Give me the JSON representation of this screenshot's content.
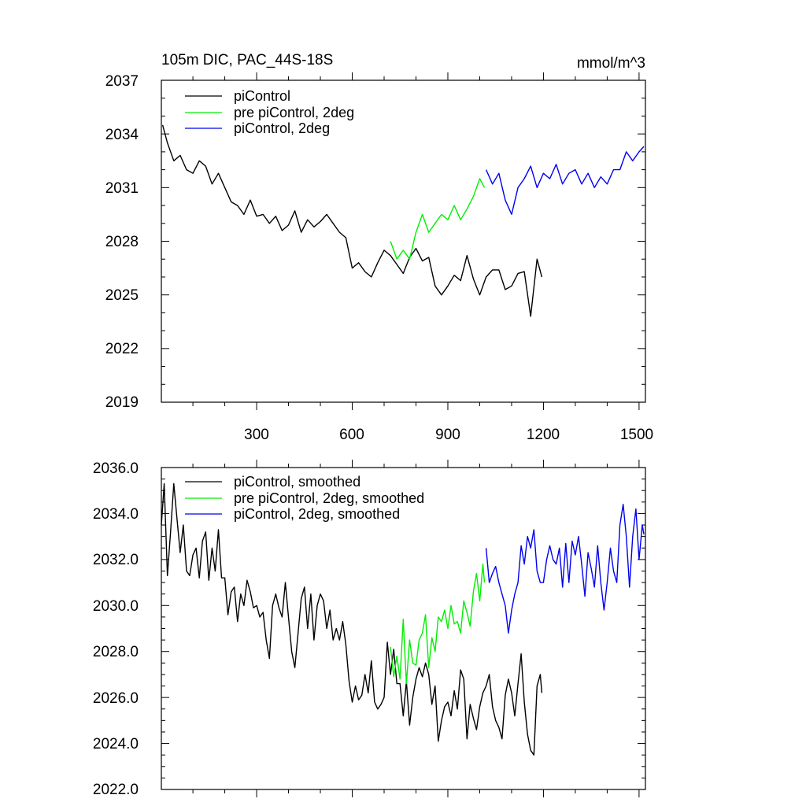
{
  "colors": {
    "piControl": "#000000",
    "pre_2deg": "#00ee00",
    "pi_2deg": "#0000ee",
    "axis": "#000000"
  },
  "chart_data": [
    {
      "type": "line",
      "title": "105m DIC, PAC_44S-18S",
      "units": "mmol/m^3",
      "xlabel": "",
      "ylabel": "",
      "xlim": [
        1,
        1520
      ],
      "ylim": [
        2019,
        2037
      ],
      "xticks": [
        "300",
        "600",
        "900",
        "1200",
        "1500"
      ],
      "yticks": [
        "2019",
        "2022",
        "2025",
        "2028",
        "2031",
        "2034",
        "2037"
      ],
      "legend_position": "top-left",
      "series": [
        {
          "name": "piControl",
          "color": "#000000",
          "x": [
            5,
            20,
            40,
            60,
            80,
            100,
            120,
            140,
            160,
            180,
            200,
            220,
            240,
            260,
            280,
            300,
            320,
            340,
            360,
            380,
            400,
            420,
            440,
            460,
            480,
            500,
            520,
            540,
            560,
            580,
            600,
            620,
            640,
            660,
            680,
            700,
            720,
            740,
            760,
            780,
            800,
            820,
            840,
            860,
            880,
            900,
            920,
            940,
            960,
            980,
            1000,
            1020,
            1040,
            1060,
            1080,
            1100,
            1120,
            1140,
            1160,
            1180,
            1195
          ],
          "y": [
            2034.5,
            2033.5,
            2032.5,
            2032.8,
            2032.0,
            2031.8,
            2032.5,
            2032.2,
            2031.2,
            2031.8,
            2031.0,
            2030.2,
            2030.0,
            2029.5,
            2030.3,
            2029.4,
            2029.5,
            2029.0,
            2029.4,
            2028.6,
            2028.9,
            2029.7,
            2028.5,
            2029.2,
            2028.8,
            2029.1,
            2029.5,
            2029.0,
            2028.5,
            2028.2,
            2026.5,
            2026.8,
            2026.3,
            2026.0,
            2026.8,
            2027.5,
            2027.2,
            2026.7,
            2026.2,
            2027.1,
            2027.6,
            2026.9,
            2027.1,
            2025.5,
            2025.0,
            2025.5,
            2026.1,
            2025.8,
            2027.2,
            2025.9,
            2025.0,
            2026.0,
            2026.4,
            2026.4,
            2025.3,
            2025.5,
            2026.2,
            2026.3,
            2023.8,
            2027.0,
            2026.0
          ]
        },
        {
          "name": "pre piControl, 2deg",
          "color": "#00ee00",
          "x": [
            720,
            740,
            760,
            780,
            800,
            820,
            840,
            860,
            880,
            900,
            920,
            940,
            960,
            980,
            1000,
            1015
          ],
          "y": [
            2028.0,
            2027.0,
            2027.5,
            2027.0,
            2028.5,
            2029.5,
            2028.5,
            2029.0,
            2029.5,
            2029.2,
            2030.0,
            2029.2,
            2029.8,
            2030.5,
            2031.5,
            2031.0
          ]
        },
        {
          "name": "piControl, 2deg",
          "color": "#0000ee",
          "x": [
            1020,
            1040,
            1060,
            1080,
            1100,
            1120,
            1140,
            1160,
            1180,
            1200,
            1220,
            1240,
            1260,
            1280,
            1300,
            1320,
            1340,
            1360,
            1380,
            1400,
            1420,
            1440,
            1460,
            1480,
            1500,
            1515
          ],
          "y": [
            2032.0,
            2031.2,
            2031.8,
            2030.3,
            2029.5,
            2031.0,
            2031.5,
            2032.2,
            2031.0,
            2031.8,
            2031.5,
            2032.3,
            2031.2,
            2031.8,
            2032.0,
            2031.2,
            2031.8,
            2031.0,
            2031.6,
            2031.2,
            2032.0,
            2032.0,
            2033.0,
            2032.5,
            2033.0,
            2033.3
          ]
        }
      ]
    },
    {
      "type": "line",
      "title": "",
      "units": "",
      "xlabel": "",
      "ylabel": "",
      "xlim": [
        1,
        1520
      ],
      "ylim": [
        2022.0,
        2036.0
      ],
      "xticks": [],
      "yticks": [
        "2022.0",
        "2024.0",
        "2026.0",
        "2028.0",
        "2030.0",
        "2032.0",
        "2034.0",
        "2036.0"
      ],
      "legend_position": "top-left",
      "series": [
        {
          "name": "piControl, smoothed",
          "color": "#000000",
          "x": [
            1,
            10,
            20,
            30,
            40,
            50,
            60,
            70,
            80,
            90,
            100,
            110,
            120,
            130,
            140,
            150,
            160,
            170,
            180,
            190,
            200,
            210,
            220,
            230,
            240,
            250,
            260,
            270,
            280,
            290,
            300,
            310,
            320,
            330,
            340,
            350,
            360,
            370,
            380,
            390,
            400,
            410,
            420,
            430,
            440,
            450,
            460,
            470,
            480,
            490,
            500,
            510,
            520,
            530,
            540,
            550,
            560,
            570,
            580,
            590,
            600,
            610,
            620,
            630,
            640,
            650,
            660,
            670,
            680,
            690,
            700,
            710,
            720,
            730,
            740,
            750,
            760,
            770,
            780,
            790,
            800,
            810,
            820,
            830,
            840,
            850,
            860,
            870,
            880,
            890,
            900,
            910,
            920,
            930,
            940,
            950,
            960,
            970,
            980,
            990,
            1000,
            1010,
            1020,
            1030,
            1040,
            1050,
            1060,
            1070,
            1080,
            1090,
            1100,
            1110,
            1120,
            1130,
            1140,
            1150,
            1160,
            1170,
            1180,
            1190,
            1195
          ],
          "y": [
            2033.5,
            2035.3,
            2031.3,
            2033.2,
            2035.3,
            2033.8,
            2032.3,
            2033.5,
            2031.5,
            2031.3,
            2032.2,
            2032.5,
            2031.2,
            2032.8,
            2033.2,
            2031.1,
            2032.5,
            2031.5,
            2033.3,
            2031.2,
            2031.2,
            2029.6,
            2030.6,
            2030.8,
            2029.3,
            2030.5,
            2030.0,
            2031.1,
            2030.6,
            2029.9,
            2030.0,
            2029.5,
            2029.7,
            2028.5,
            2027.7,
            2030.0,
            2030.5,
            2029.9,
            2029.5,
            2031.0,
            2029.5,
            2028.0,
            2027.3,
            2028.8,
            2030.3,
            2030.8,
            2029.0,
            2030.5,
            2028.5,
            2030.0,
            2030.5,
            2030.2,
            2029.0,
            2029.8,
            2028.5,
            2029.0,
            2028.5,
            2029.3,
            2028.3,
            2026.7,
            2025.8,
            2026.5,
            2025.9,
            2026.1,
            2027.0,
            2026.2,
            2027.6,
            2025.8,
            2025.5,
            2025.7,
            2026.0,
            2028.4,
            2027.0,
            2028.1,
            2026.6,
            2026.6,
            2025.2,
            2026.7,
            2024.8,
            2026.0,
            2026.8,
            2027.3,
            2026.9,
            2027.5,
            2027.0,
            2025.7,
            2026.5,
            2024.1,
            2025.0,
            2025.6,
            2025.8,
            2025.2,
            2026.3,
            2025.5,
            2027.2,
            2026.8,
            2024.2,
            2025.7,
            2025.1,
            2024.6,
            2025.6,
            2026.2,
            2026.5,
            2027.0,
            2025.6,
            2025.0,
            2024.7,
            2024.2,
            2026.1,
            2026.8,
            2026.2,
            2025.2,
            2026.6,
            2027.9,
            2025.8,
            2024.4,
            2023.7,
            2023.5,
            2026.5,
            2027.0,
            2026.2
          ]
        },
        {
          "name": "pre piControl, 2deg, smoothed",
          "color": "#00ee00",
          "x": [
            720,
            730,
            740,
            750,
            760,
            770,
            780,
            790,
            800,
            810,
            820,
            830,
            840,
            850,
            860,
            870,
            880,
            890,
            900,
            910,
            920,
            930,
            940,
            950,
            960,
            970,
            980,
            990,
            1000,
            1010,
            1015
          ],
          "y": [
            2028.2,
            2026.9,
            2027.8,
            2026.8,
            2029.4,
            2026.6,
            2028.5,
            2027.5,
            2027.4,
            2028.5,
            2028.8,
            2029.6,
            2027.3,
            2028.6,
            2028.0,
            2029.5,
            2029.3,
            2029.8,
            2029.0,
            2030.0,
            2029.2,
            2029.3,
            2028.8,
            2030.2,
            2029.7,
            2029.1,
            2030.6,
            2031.4,
            2030.2,
            2031.8,
            2031.0
          ]
        },
        {
          "name": "piControl, 2deg, smoothed",
          "color": "#0000ee",
          "x": [
            1020,
            1030,
            1040,
            1050,
            1060,
            1070,
            1080,
            1090,
            1100,
            1110,
            1120,
            1130,
            1140,
            1150,
            1160,
            1170,
            1180,
            1190,
            1200,
            1210,
            1220,
            1230,
            1240,
            1250,
            1260,
            1270,
            1280,
            1290,
            1300,
            1310,
            1320,
            1330,
            1340,
            1350,
            1360,
            1370,
            1380,
            1390,
            1400,
            1410,
            1420,
            1430,
            1440,
            1450,
            1460,
            1470,
            1480,
            1490,
            1500,
            1510,
            1515
          ],
          "y": [
            2032.5,
            2031.0,
            2031.4,
            2031.7,
            2031.0,
            2030.5,
            2030.0,
            2028.8,
            2029.8,
            2030.5,
            2031.0,
            2032.6,
            2031.8,
            2033.0,
            2032.5,
            2033.3,
            2031.5,
            2031.0,
            2031.0,
            2032.0,
            2032.6,
            2032.0,
            2031.8,
            2032.5,
            2030.8,
            2032.7,
            2031.0,
            2032.8,
            2032.2,
            2033.0,
            2031.8,
            2030.4,
            2032.3,
            2031.6,
            2030.8,
            2032.6,
            2031.0,
            2029.8,
            2031.0,
            2032.5,
            2031.5,
            2031.0,
            2033.5,
            2034.4,
            2033.0,
            2030.8,
            2033.0,
            2034.2,
            2032.0,
            2033.5,
            2033.1
          ]
        }
      ]
    }
  ]
}
